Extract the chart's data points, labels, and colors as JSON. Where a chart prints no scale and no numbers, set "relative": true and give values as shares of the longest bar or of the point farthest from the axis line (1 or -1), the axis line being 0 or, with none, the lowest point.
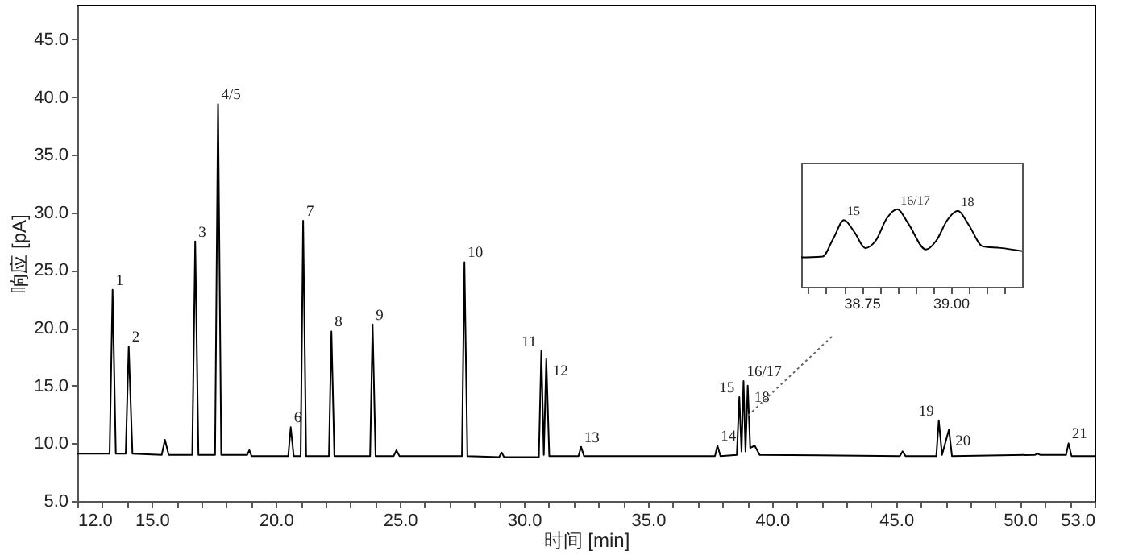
{
  "chart_data": [
    {
      "type": "line",
      "xlabel": "时间 [min]",
      "ylabel": "响应 [pA]",
      "xlim": [
        12,
        53
      ],
      "ylim": [
        5,
        48
      ],
      "xticks": [
        {
          "value": 12,
          "label": "12.0"
        },
        {
          "value": 13,
          "label": null
        },
        {
          "value": 14,
          "label": null
        },
        {
          "value": 15,
          "label": "15.0"
        },
        {
          "value": 16,
          "label": null
        },
        {
          "value": 17,
          "label": null
        },
        {
          "value": 18,
          "label": null
        },
        {
          "value": 19,
          "label": null
        },
        {
          "value": 20,
          "label": "20.0"
        },
        {
          "value": 21,
          "label": null
        },
        {
          "value": 22,
          "label": null
        },
        {
          "value": 23,
          "label": null
        },
        {
          "value": 24,
          "label": null
        },
        {
          "value": 25,
          "label": "25.0"
        },
        {
          "value": 26,
          "label": null
        },
        {
          "value": 27,
          "label": null
        },
        {
          "value": 28,
          "label": null
        },
        {
          "value": 29,
          "label": null
        },
        {
          "value": 30,
          "label": "30.0"
        },
        {
          "value": 31,
          "label": null
        },
        {
          "value": 32,
          "label": null
        },
        {
          "value": 33,
          "label": null
        },
        {
          "value": 34,
          "label": null
        },
        {
          "value": 35,
          "label": "35.0"
        },
        {
          "value": 36,
          "label": null
        },
        {
          "value": 37,
          "label": null
        },
        {
          "value": 38,
          "label": null
        },
        {
          "value": 39,
          "label": null
        },
        {
          "value": 40,
          "label": "40.0"
        },
        {
          "value": 41,
          "label": null
        },
        {
          "value": 42,
          "label": null
        },
        {
          "value": 43,
          "label": null
        },
        {
          "value": 44,
          "label": null
        },
        {
          "value": 45,
          "label": "45.0"
        },
        {
          "value": 46,
          "label": null
        },
        {
          "value": 47,
          "label": null
        },
        {
          "value": 48,
          "label": null
        },
        {
          "value": 49,
          "label": null
        },
        {
          "value": 50,
          "label": "50.0"
        },
        {
          "value": 51,
          "label": null
        },
        {
          "value": 52,
          "label": null
        },
        {
          "value": 53,
          "label": "53.0"
        }
      ],
      "yticks": [
        {
          "value": 5,
          "label": "5.0"
        },
        {
          "value": 10,
          "label": "10.0"
        },
        {
          "value": 15,
          "label": "15.0"
        },
        {
          "value": 20,
          "label": "20.0"
        },
        {
          "value": 25,
          "label": "25.0"
        },
        {
          "value": 30,
          "label": "30.0"
        },
        {
          "value": 35,
          "label": "35.0"
        },
        {
          "value": 40,
          "label": "40.0"
        },
        {
          "value": 45,
          "label": "45.0"
        }
      ],
      "series": [
        {
          "color": "#000000",
          "x": [
            12.0,
            13.3,
            13.42,
            13.55,
            13.95,
            14.07,
            14.22,
            15.4,
            15.53,
            15.68,
            16.63,
            16.75,
            16.88,
            17.55,
            17.67,
            17.8,
            18.85,
            18.93,
            19.02,
            20.5,
            20.6,
            20.72,
            21.0,
            21.1,
            21.22,
            22.14,
            22.24,
            22.36,
            23.8,
            23.9,
            24.02,
            24.75,
            24.86,
            24.98,
            27.5,
            27.6,
            27.72,
            29.0,
            29.1,
            29.2,
            30.6,
            30.7,
            30.8,
            30.9,
            31.02,
            32.2,
            32.3,
            32.42,
            37.7,
            37.8,
            37.92,
            38.58,
            38.68,
            38.77,
            38.85,
            38.93,
            39.02,
            39.12,
            39.3,
            39.5,
            45.15,
            45.26,
            45.38,
            46.62,
            46.72,
            46.85,
            47.13,
            47.25,
            50.6,
            50.7,
            50.8,
            51.85,
            51.95,
            52.07,
            53.0
          ],
          "values": [
            9.1,
            9.1,
            23.3,
            9.1,
            9.1,
            18.4,
            9.1,
            9.0,
            10.3,
            9.0,
            9.0,
            27.5,
            9.0,
            9.0,
            39.4,
            9.0,
            9.0,
            9.4,
            8.9,
            8.9,
            11.4,
            8.9,
            8.9,
            29.3,
            8.9,
            8.9,
            19.7,
            8.9,
            8.9,
            20.3,
            8.9,
            8.9,
            9.4,
            8.9,
            8.9,
            25.7,
            8.9,
            8.8,
            9.2,
            8.8,
            8.8,
            18.0,
            9.0,
            17.3,
            8.9,
            8.9,
            9.7,
            8.9,
            8.9,
            9.8,
            8.9,
            9.0,
            14.0,
            9.3,
            15.4,
            9.3,
            15.0,
            9.6,
            9.8,
            9.0,
            8.9,
            9.3,
            8.9,
            8.9,
            12.0,
            9.0,
            11.2,
            8.9,
            9.0,
            9.1,
            9.0,
            9.0,
            10.0,
            8.9,
            8.9
          ]
        }
      ],
      "annotations": [
        {
          "text": "1",
          "x": 13.42,
          "y": 23.3
        },
        {
          "text": "2",
          "x": 14.07,
          "y": 18.4
        },
        {
          "text": "3",
          "x": 16.75,
          "y": 27.5
        },
        {
          "text": "4/5",
          "x": 17.67,
          "y": 39.4
        },
        {
          "text": "6",
          "x": 20.6,
          "y": 11.4
        },
        {
          "text": "7",
          "x": 21.1,
          "y": 29.3
        },
        {
          "text": "8",
          "x": 22.24,
          "y": 19.7
        },
        {
          "text": "9",
          "x": 23.9,
          "y": 20.3
        },
        {
          "text": "10",
          "x": 27.6,
          "y": 25.7
        },
        {
          "text": "11",
          "x": 30.7,
          "y": 18.0
        },
        {
          "text": "12",
          "x": 30.9,
          "y": 17.3
        },
        {
          "text": "13",
          "x": 32.3,
          "y": 9.7
        },
        {
          "text": "14",
          "x": 37.8,
          "y": 9.8
        },
        {
          "text": "15",
          "x": 38.68,
          "y": 14.0
        },
        {
          "text": "16/17",
          "x": 38.85,
          "y": 15.4
        },
        {
          "text": "18",
          "x": 39.02,
          "y": 15.0
        },
        {
          "text": "19",
          "x": 46.72,
          "y": 12.0
        },
        {
          "text": "20",
          "x": 47.13,
          "y": 11.2
        },
        {
          "text": "21",
          "x": 51.95,
          "y": 10.0
        }
      ]
    },
    {
      "type": "line",
      "relative": true,
      "xlim": [
        38.58,
        39.2
      ],
      "xticks": [
        {
          "value": 38.6,
          "label": null
        },
        {
          "value": 38.65,
          "label": null
        },
        {
          "value": 38.7,
          "label": null
        },
        38.75,
        {
          "value": 38.8,
          "label": null
        },
        {
          "value": 38.85,
          "label": null
        },
        {
          "value": 38.9,
          "label": null
        },
        {
          "value": 38.95,
          "label": null
        },
        {
          "value": 39.0,
          "label": "39.00"
        },
        {
          "value": 39.05,
          "label": null
        },
        {
          "value": 39.1,
          "label": null
        },
        {
          "value": 39.15,
          "label": null
        }
      ],
      "series": [
        {
          "color": "#000000",
          "x": [
            38.58,
            38.64,
            38.67,
            38.7,
            38.73,
            38.76,
            38.79,
            38.82,
            38.85,
            38.88,
            38.93,
            38.96,
            38.99,
            39.02,
            39.05,
            39.09,
            39.14,
            39.2
          ],
          "values": [
            0.38,
            0.39,
            0.62,
            0.86,
            0.7,
            0.5,
            0.6,
            0.88,
            1.0,
            0.82,
            0.48,
            0.6,
            0.86,
            0.98,
            0.8,
            0.52,
            0.5,
            0.46
          ]
        }
      ],
      "annotations": [
        {
          "text": "15",
          "x": 38.7,
          "y": 0.86
        },
        {
          "text": "16/17",
          "x": 38.85,
          "y": 1.0
        },
        {
          "text": "18",
          "x": 39.02,
          "y": 0.98
        }
      ]
    }
  ]
}
